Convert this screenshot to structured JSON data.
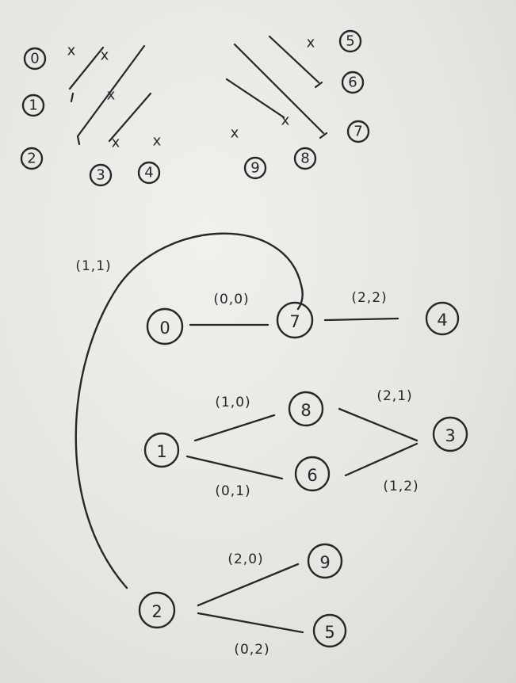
{
  "top_left_grid": {
    "row_labels": [
      "0",
      "1",
      "2"
    ],
    "col_labels": [
      "3",
      "4"
    ],
    "marks": [
      "x",
      "x",
      "x",
      "x",
      "x"
    ]
  },
  "top_right_grid": {
    "row_labels": [
      "5",
      "6",
      "7"
    ],
    "col_labels": [
      "9",
      "8"
    ],
    "marks": [
      "x",
      "x",
      "x"
    ]
  },
  "graph": {
    "nodes": [
      "0",
      "7",
      "4",
      "1",
      "8",
      "6",
      "3",
      "2",
      "9",
      "5"
    ],
    "edges": [
      {
        "from": "0",
        "to": "7",
        "label": "(0,0)"
      },
      {
        "from": "7",
        "to": "4",
        "label": "(2,2)"
      },
      {
        "from": "1",
        "to": "8",
        "label": "(1,0)"
      },
      {
        "from": "1",
        "to": "6",
        "label": "(0,1)"
      },
      {
        "from": "8",
        "to": "3",
        "label": "(2,1)"
      },
      {
        "from": "6",
        "to": "3",
        "label": "(1,2)"
      },
      {
        "from": "2",
        "to": "9",
        "label": "(2,0)"
      },
      {
        "from": "2",
        "to": "5",
        "label": "(0,2)"
      },
      {
        "from": "2",
        "to": "7",
        "label": "(1,1)"
      }
    ]
  }
}
